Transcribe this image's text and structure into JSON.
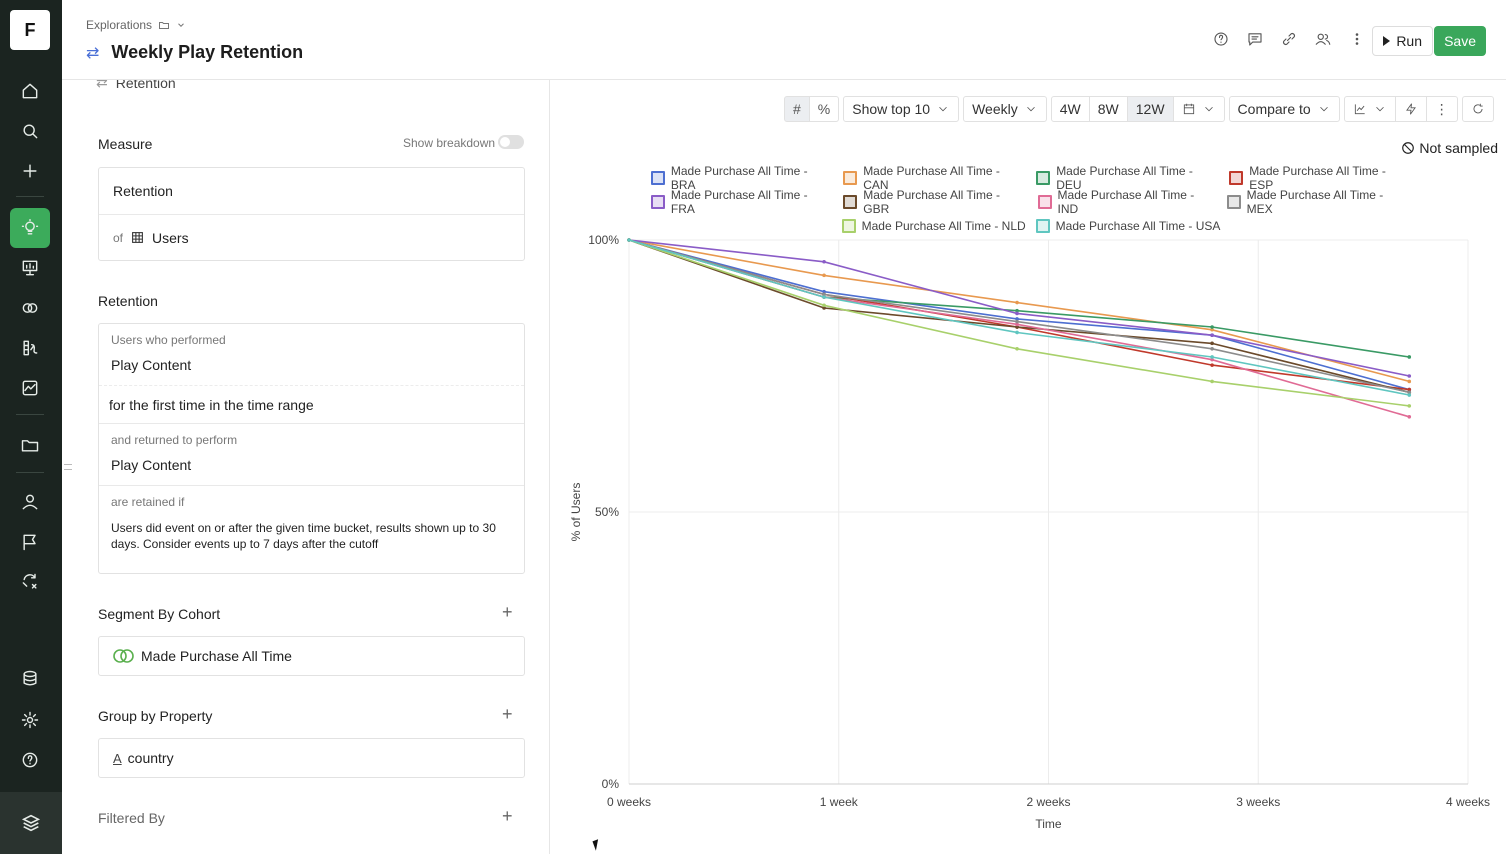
{
  "rail": {
    "logo": "F",
    "icons": [
      "home-icon",
      "search-icon",
      "plus-icon",
      "lightbulb-icon",
      "presentation-icon",
      "cohort-icon",
      "metrics-icon",
      "chart-icon",
      "folder-icon",
      "user-icon",
      "flag-icon",
      "experiment-icon",
      "database-icon",
      "gear-icon",
      "help-icon",
      "layers-icon"
    ]
  },
  "header": {
    "breadcrumb": "Explorations",
    "title": "Weekly Play Retention",
    "run_label": "Run",
    "save_label": "Save",
    "icons": [
      "help-icon",
      "comment-icon",
      "link-icon",
      "users-icon",
      "more-icon"
    ]
  },
  "panel": {
    "previous_item": "Retention",
    "measure": {
      "title": "Measure",
      "show_breakdown": "Show breakdown",
      "metric": "Retention",
      "of_label": "of",
      "entity": "Users"
    },
    "retention": {
      "title": "Retention",
      "performed_label": "Users who performed",
      "first_event": "Play Content",
      "first_time_text": "for the first time in the time range",
      "returned_label": "and returned to perform",
      "return_event": "Play Content",
      "retained_label": "are retained if",
      "retained_text": "Users did event on or after the given time bucket, results shown up to 30 days. Consider events up to 7 days after the cutoff"
    },
    "segment": {
      "title": "Segment By Cohort",
      "value": "Made Purchase All Time"
    },
    "group": {
      "title": "Group by Property",
      "value": "country"
    },
    "filtered": {
      "title": "Filtered By"
    }
  },
  "toolbar": {
    "show_top": "Show top 10",
    "interval": "Weekly",
    "ranges": [
      "4W",
      "8W",
      "12W"
    ],
    "active_range": "12W",
    "compare": "Compare to"
  },
  "not_sampled": "Not sampled",
  "chart_data": {
    "type": "line",
    "xlabel": "Time",
    "ylabel": "% of Users",
    "x": [
      0,
      0.93,
      1.85,
      2.78,
      3.72
    ],
    "x_ticks": [
      "0 weeks",
      "1 week",
      "2 weeks",
      "3 weeks",
      "4 weeks"
    ],
    "x_tick_values": [
      0,
      1,
      2,
      3,
      4
    ],
    "y_ticks": [
      "0%",
      "50%",
      "100%"
    ],
    "y_tick_values": [
      0,
      50,
      100
    ],
    "xlim": [
      0,
      4
    ],
    "ylim": [
      0,
      100
    ],
    "grid": true,
    "legend_position": "top",
    "series": [
      {
        "name": "Made Purchase All Time - BRA",
        "color": "#4d6fd1",
        "values": [
          100,
          90.5,
          85.5,
          82.5,
          72.5
        ]
      },
      {
        "name": "Made Purchase All Time - CAN",
        "color": "#e8994f",
        "values": [
          100,
          93.5,
          88.5,
          83.5,
          74
        ]
      },
      {
        "name": "Made Purchase All Time - DEU",
        "color": "#3a9a65",
        "values": [
          100,
          89.5,
          87,
          84,
          78.5
        ]
      },
      {
        "name": "Made Purchase All Time - ESP",
        "color": "#c0392b",
        "values": [
          100,
          90,
          84,
          77,
          72.5
        ]
      },
      {
        "name": "Made Purchase All Time - FRA",
        "color": "#8a5cc7",
        "values": [
          100,
          96,
          86.5,
          82.5,
          75
        ]
      },
      {
        "name": "Made Purchase All Time - GBR",
        "color": "#6b4a2b",
        "values": [
          100,
          87.5,
          84,
          81,
          72
        ]
      },
      {
        "name": "Made Purchase All Time - IND",
        "color": "#e06b95",
        "values": [
          100,
          89.5,
          84.5,
          78,
          67.5
        ]
      },
      {
        "name": "Made Purchase All Time - MEX",
        "color": "#8c8c8c",
        "values": [
          100,
          90,
          85,
          80,
          72
        ]
      },
      {
        "name": "Made Purchase All Time - NLD",
        "color": "#a8d06b",
        "values": [
          100,
          88,
          80,
          74,
          69.5
        ]
      },
      {
        "name": "Made Purchase All Time - USA",
        "color": "#5fc6c0",
        "values": [
          100,
          89.5,
          83,
          78.5,
          71.5
        ]
      }
    ]
  }
}
